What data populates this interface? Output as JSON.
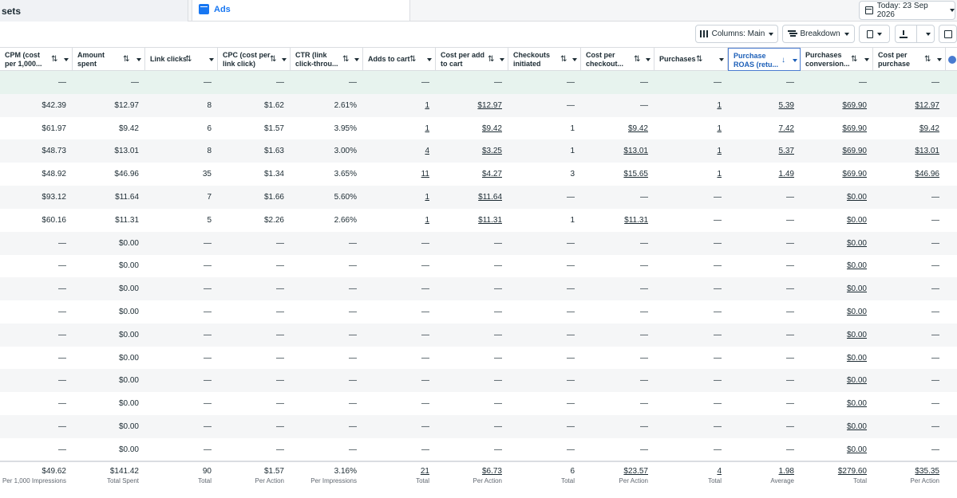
{
  "tabs": {
    "adsets_label": "sets",
    "ads_label": "Ads"
  },
  "date_picker": {
    "label": "Today: 23 Sep 2026"
  },
  "toolbar": {
    "columns_label": "Columns: Main",
    "breakdown_label": "Breakdown"
  },
  "columns": [
    {
      "key": "cpm",
      "label_lines": [
        "CPM (cost",
        "per 1,000..."
      ]
    },
    {
      "key": "spent",
      "label_lines": [
        "Amount",
        "spent"
      ]
    },
    {
      "key": "clicks",
      "label_lines": [
        "Link clicks"
      ]
    },
    {
      "key": "cpc",
      "label_lines": [
        "CPC (cost per",
        "link click)"
      ]
    },
    {
      "key": "ctr",
      "label_lines": [
        "CTR (link",
        "click-throu..."
      ]
    },
    {
      "key": "atc",
      "label_lines": [
        "Adds to cart"
      ]
    },
    {
      "key": "cpatc",
      "label_lines": [
        "Cost per add",
        "to cart"
      ]
    },
    {
      "key": "checkouts",
      "label_lines": [
        "Checkouts",
        "initiated"
      ]
    },
    {
      "key": "cpco",
      "label_lines": [
        "Cost per",
        "checkout..."
      ]
    },
    {
      "key": "purchases",
      "label_lines": [
        "Purchases"
      ]
    },
    {
      "key": "roas",
      "label_lines": [
        "Purchase",
        "ROAS (retu..."
      ]
    },
    {
      "key": "pcv",
      "label_lines": [
        "Purchases",
        "conversion..."
      ]
    },
    {
      "key": "cpp",
      "label_lines": [
        "Cost per",
        "purchase"
      ]
    }
  ],
  "rows": [
    [
      "—",
      "—",
      "—",
      "—",
      "—",
      "—",
      "—",
      "—",
      "—",
      "—",
      "—",
      "—",
      "—"
    ],
    [
      "$42.39",
      "$12.97",
      "8",
      "$1.62",
      "2.61%",
      "1",
      "$12.97",
      "—",
      "—",
      "1",
      "5.39",
      "$69.90",
      "$12.97"
    ],
    [
      "$61.97",
      "$9.42",
      "6",
      "$1.57",
      "3.95%",
      "1",
      "$9.42",
      "1",
      "$9.42",
      "1",
      "7.42",
      "$69.90",
      "$9.42"
    ],
    [
      "$48.73",
      "$13.01",
      "8",
      "$1.63",
      "3.00%",
      "4",
      "$3.25",
      "1",
      "$13.01",
      "1",
      "5.37",
      "$69.90",
      "$13.01"
    ],
    [
      "$48.92",
      "$46.96",
      "35",
      "$1.34",
      "3.65%",
      "11",
      "$4.27",
      "3",
      "$15.65",
      "1",
      "1.49",
      "$69.90",
      "$46.96"
    ],
    [
      "$93.12",
      "$11.64",
      "7",
      "$1.66",
      "5.60%",
      "1",
      "$11.64",
      "—",
      "—",
      "—",
      "—",
      "$0.00",
      "—"
    ],
    [
      "$60.16",
      "$11.31",
      "5",
      "$2.26",
      "2.66%",
      "1",
      "$11.31",
      "1",
      "$11.31",
      "—",
      "—",
      "$0.00",
      "—"
    ],
    [
      "—",
      "$0.00",
      "—",
      "—",
      "—",
      "—",
      "—",
      "—",
      "—",
      "—",
      "—",
      "$0.00",
      "—"
    ],
    [
      "—",
      "$0.00",
      "—",
      "—",
      "—",
      "—",
      "—",
      "—",
      "—",
      "—",
      "—",
      "$0.00",
      "—"
    ],
    [
      "—",
      "$0.00",
      "—",
      "—",
      "—",
      "—",
      "—",
      "—",
      "—",
      "—",
      "—",
      "$0.00",
      "—"
    ],
    [
      "—",
      "$0.00",
      "—",
      "—",
      "—",
      "—",
      "—",
      "—",
      "—",
      "—",
      "—",
      "$0.00",
      "—"
    ],
    [
      "—",
      "$0.00",
      "—",
      "—",
      "—",
      "—",
      "—",
      "—",
      "—",
      "—",
      "—",
      "$0.00",
      "—"
    ],
    [
      "—",
      "$0.00",
      "—",
      "—",
      "—",
      "—",
      "—",
      "—",
      "—",
      "—",
      "—",
      "$0.00",
      "—"
    ],
    [
      "—",
      "$0.00",
      "—",
      "—",
      "—",
      "—",
      "—",
      "—",
      "—",
      "—",
      "—",
      "$0.00",
      "—"
    ],
    [
      "—",
      "$0.00",
      "—",
      "—",
      "—",
      "—",
      "—",
      "—",
      "—",
      "—",
      "—",
      "$0.00",
      "—"
    ],
    [
      "—",
      "$0.00",
      "—",
      "—",
      "—",
      "—",
      "—",
      "—",
      "—",
      "—",
      "—",
      "$0.00",
      "—"
    ],
    [
      "—",
      "$0.00",
      "—",
      "—",
      "—",
      "—",
      "—",
      "—",
      "—",
      "—",
      "—",
      "$0.00",
      "—"
    ]
  ],
  "totals": [
    {
      "value": "$49.62",
      "sub": "Per 1,000 Impressions"
    },
    {
      "value": "$141.42",
      "sub": "Total Spent"
    },
    {
      "value": "90",
      "sub": "Total"
    },
    {
      "value": "$1.57",
      "sub": "Per Action"
    },
    {
      "value": "3.16%",
      "sub": "Per Impressions"
    },
    {
      "value": "21",
      "sub": "Total"
    },
    {
      "value": "$6.73",
      "sub": "Per Action"
    },
    {
      "value": "6",
      "sub": "Total"
    },
    {
      "value": "$23.57",
      "sub": "Per Action"
    },
    {
      "value": "4",
      "sub": "Total"
    },
    {
      "value": "1.98",
      "sub": "Average"
    },
    {
      "value": "$279.60",
      "sub": "Total"
    },
    {
      "value": "$35.35",
      "sub": "Per Action"
    }
  ]
}
